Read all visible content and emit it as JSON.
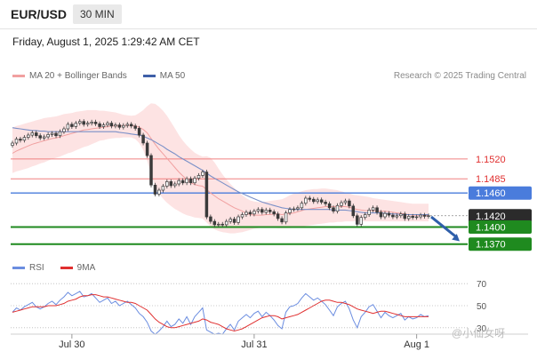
{
  "header": {
    "pair": "EUR/USD",
    "timeframe": "30 MIN"
  },
  "date_line": "Friday, August 1, 2025 1:29:42 AM CET",
  "credit": "Research © 2025 Trading Central",
  "legend": {
    "bollinger": "MA 20 + Bollinger Bands",
    "ma50": "MA 50"
  },
  "rsi_legend": {
    "rsi": "RSI",
    "ma9": "9MA"
  },
  "watermark": "@小仙女呀",
  "colors": {
    "resistance": "#f08080",
    "pivot": "#4a7cdc",
    "support": "#1f8a1f",
    "candle": "#3a3a3a",
    "bollinger_fill": "#fde3e3",
    "ma20": "#f1a0a0",
    "ma50": "#7a90c8",
    "rsi": "#6b8de0",
    "rsi_ma": "#e03030",
    "current_price_label": "#2b2b2b"
  },
  "chart_data": [
    {
      "type": "candlestick",
      "title": "EUR/USD 30 MIN",
      "xlabel": "",
      "ylabel": "",
      "x_ticks": [
        "Jul 30",
        "Jul 31",
        "Aug 1"
      ],
      "ylim": [
        1.1357,
        1.162
      ],
      "current_price": 1.142,
      "levels": [
        {
          "value": 1.152,
          "label": "1.1520",
          "kind": "resistance"
        },
        {
          "value": 1.1485,
          "label": "1.1485",
          "kind": "resistance"
        },
        {
          "value": 1.146,
          "label": "1.1460",
          "kind": "pivot"
        },
        {
          "value": 1.142,
          "label": "1.1420",
          "kind": "current"
        },
        {
          "value": 1.14,
          "label": "1.1400",
          "kind": "support"
        },
        {
          "value": 1.137,
          "label": "1.1370",
          "kind": "support"
        }
      ],
      "forecast": {
        "from": 1.1418,
        "to": 1.1375,
        "direction": "down"
      },
      "close": [
        1.1548,
        1.1555,
        1.1553,
        1.1558,
        1.1562,
        1.1566,
        1.1561,
        1.1557,
        1.1559,
        1.1563,
        1.1565,
        1.1561,
        1.1568,
        1.1573,
        1.1581,
        1.1577,
        1.1583,
        1.1586,
        1.1581,
        1.1583,
        1.1585,
        1.1582,
        1.1577,
        1.158,
        1.1583,
        1.1578,
        1.158,
        1.1576,
        1.1579,
        1.1581,
        1.1578,
        1.1574,
        1.1562,
        1.1548,
        1.1526,
        1.1474,
        1.1458,
        1.1465,
        1.1472,
        1.148,
        1.1473,
        1.1476,
        1.1482,
        1.1478,
        1.1485,
        1.1478,
        1.1486,
        1.1491,
        1.1497,
        1.1418,
        1.141,
        1.1404,
        1.1405,
        1.1404,
        1.141,
        1.1414,
        1.1408,
        1.1418,
        1.1422,
        1.1426,
        1.1423,
        1.1428,
        1.1431,
        1.1426,
        1.143,
        1.1427,
        1.1423,
        1.1415,
        1.1409,
        1.1425,
        1.1431,
        1.1432,
        1.1434,
        1.1442,
        1.1451,
        1.1449,
        1.1445,
        1.1448,
        1.1444,
        1.1441,
        1.1434,
        1.1428,
        1.1438,
        1.1443,
        1.1446,
        1.1437,
        1.142,
        1.1405,
        1.1417,
        1.1422,
        1.143,
        1.1434,
        1.1426,
        1.1418,
        1.1424,
        1.1421,
        1.1418,
        1.142,
        1.1423,
        1.1415,
        1.1419,
        1.1417,
        1.1418,
        1.1421,
        1.1419,
        1.142
      ],
      "bollinger_mid": [
        1.153,
        1.1534,
        1.1537,
        1.154,
        1.1543,
        1.1546,
        1.1548,
        1.155,
        1.1552,
        1.1554,
        1.1556,
        1.1557,
        1.1559,
        1.1561,
        1.1563,
        1.1565,
        1.1567,
        1.1569,
        1.1571,
        1.1572,
        1.1573,
        1.1574,
        1.1575,
        1.1576,
        1.1577,
        1.1578,
        1.1578,
        1.1578,
        1.1579,
        1.1579,
        1.1579,
        1.1578,
        1.1576,
        1.1572,
        1.1566,
        1.1556,
        1.1546,
        1.1537,
        1.1529,
        1.1521,
        1.1513,
        1.1505,
        1.1497,
        1.149,
        1.1484,
        1.1478,
        1.1475,
        1.1473,
        1.1472,
        1.1466,
        1.146,
        1.1455,
        1.145,
        1.1446,
        1.1442,
        1.1438,
        1.1434,
        1.1431,
        1.1428,
        1.1424,
        1.1422,
        1.1421,
        1.1421,
        1.1421,
        1.1422,
        1.1422,
        1.1423,
        1.1423,
        1.1422,
        1.1423,
        1.1424,
        1.1425,
        1.1427,
        1.1429,
        1.1431,
        1.1432,
        1.1433,
        1.1434,
        1.1435,
        1.1436,
        1.1436,
        1.1436,
        1.1436,
        1.1436,
        1.1436,
        1.1435,
        1.1433,
        1.1431,
        1.143,
        1.1429,
        1.1429,
        1.1429,
        1.1428,
        1.1428,
        1.1428,
        1.1427,
        1.1426,
        1.1425,
        1.1424,
        1.1423,
        1.1422,
        1.1421,
        1.1421,
        1.1421,
        1.1421,
        1.1421
      ],
      "bollinger_upper": [
        1.1575,
        1.1578,
        1.158,
        1.1582,
        1.1584,
        1.1586,
        1.1588,
        1.159,
        1.1592,
        1.1593,
        1.1594,
        1.1595,
        1.1597,
        1.1599,
        1.16,
        1.1601,
        1.1603,
        1.1604,
        1.1605,
        1.1606,
        1.1606,
        1.1606,
        1.1605,
        1.1605,
        1.1604,
        1.1603,
        1.1602,
        1.16,
        1.1598,
        1.1597,
        1.1596,
        1.1597,
        1.1601,
        1.1606,
        1.1613,
        1.1618,
        1.1617,
        1.1612,
        1.1605,
        1.1596,
        1.1585,
        1.1574,
        1.1562,
        1.1552,
        1.1544,
        1.1537,
        1.1531,
        1.1527,
        1.1524,
        1.1525,
        1.1522,
        1.1514,
        1.1503,
        1.1493,
        1.1484,
        1.1476,
        1.1469,
        1.1462,
        1.1456,
        1.1451,
        1.1447,
        1.1445,
        1.1444,
        1.1444,
        1.1445,
        1.1446,
        1.1447,
        1.1448,
        1.1449,
        1.1452,
        1.1456,
        1.1459,
        1.1461,
        1.1463,
        1.1465,
        1.1466,
        1.1467,
        1.1467,
        1.1468,
        1.1468,
        1.1467,
        1.1466,
        1.1465,
        1.1463,
        1.1461,
        1.1459,
        1.1457,
        1.1456,
        1.1455,
        1.1454,
        1.1453,
        1.1451,
        1.145,
        1.1449,
        1.1448,
        1.1447,
        1.1446,
        1.1445,
        1.1444,
        1.1443,
        1.1442,
        1.1441,
        1.1441,
        1.1441,
        1.1441,
        1.1441
      ],
      "bollinger_lower": [
        1.1495,
        1.1498,
        1.15,
        1.1502,
        1.1504,
        1.1507,
        1.1509,
        1.1512,
        1.1514,
        1.1517,
        1.152,
        1.1522,
        1.1524,
        1.1527,
        1.153,
        1.1532,
        1.1535,
        1.1538,
        1.1541,
        1.1543,
        1.1546,
        1.1549,
        1.1552,
        1.1553,
        1.1555,
        1.1556,
        1.1557,
        1.1557,
        1.1558,
        1.1558,
        1.1558,
        1.1555,
        1.1548,
        1.1536,
        1.1517,
        1.1492,
        1.1472,
        1.1459,
        1.145,
        1.1443,
        1.1437,
        1.1432,
        1.1428,
        1.1424,
        1.1421,
        1.1419,
        1.1417,
        1.1416,
        1.1415,
        1.1408,
        1.1401,
        1.1396,
        1.1393,
        1.1391,
        1.139,
        1.1389,
        1.1389,
        1.139,
        1.1391,
        1.1393,
        1.1395,
        1.1397,
        1.1398,
        1.1399,
        1.1399,
        1.1399,
        1.1399,
        1.1398,
        1.1398,
        1.1398,
        1.1398,
        1.1399,
        1.14,
        1.1401,
        1.1402,
        1.1403,
        1.1404,
        1.1405,
        1.1406,
        1.1407,
        1.1408,
        1.1408,
        1.1409,
        1.1409,
        1.141,
        1.141,
        1.141,
        1.141,
        1.141,
        1.141,
        1.141,
        1.141,
        1.141,
        1.141,
        1.141,
        1.141,
        1.141,
        1.141,
        1.141,
        1.141,
        1.141,
        1.141,
        1.141,
        1.141,
        1.141,
        1.141
      ],
      "ma50": [
        1.1575,
        1.1574,
        1.1573,
        1.1572,
        1.1571,
        1.157,
        1.157,
        1.1569,
        1.1569,
        1.1568,
        1.1568,
        1.1568,
        1.1568,
        1.1568,
        1.1568,
        1.1568,
        1.1568,
        1.1568,
        1.1568,
        1.1568,
        1.1568,
        1.1568,
        1.1568,
        1.1568,
        1.1568,
        1.1568,
        1.1568,
        1.1567,
        1.1566,
        1.1565,
        1.1564,
        1.1563,
        1.1562,
        1.156,
        1.1557,
        1.1554,
        1.155,
        1.1546,
        1.1542,
        1.1537,
        1.1533,
        1.1529,
        1.1524,
        1.152,
        1.1516,
        1.1512,
        1.1508,
        1.1504,
        1.15,
        1.1495,
        1.149,
        1.1486,
        1.1482,
        1.1478,
        1.1474,
        1.147,
        1.1466,
        1.1462,
        1.1459,
        1.1456,
        1.1453,
        1.145,
        1.1447,
        1.1444,
        1.1442,
        1.144,
        1.1438,
        1.1436,
        1.1434,
        1.1433,
        1.1432,
        1.1431,
        1.1431,
        1.1431,
        1.1431,
        1.1431,
        1.1431,
        1.1431,
        1.1431,
        1.1431,
        1.1431,
        1.143,
        1.143,
        1.143,
        1.143,
        1.1429,
        1.1428,
        1.1427,
        1.1426,
        1.1425,
        1.1425,
        1.1425,
        1.1425,
        1.1425,
        1.1424,
        1.1424,
        1.1423,
        1.1423,
        1.1422,
        1.1422,
        1.1422,
        1.1422,
        1.1422,
        1.1422,
        1.1422,
        1.1422
      ]
    },
    {
      "type": "line",
      "title": "RSI",
      "ylim": [
        25,
        75
      ],
      "y_ticks": [
        70,
        50,
        30
      ],
      "series": [
        {
          "name": "RSI",
          "values": [
            44,
            48,
            46,
            49,
            51,
            53,
            49,
            47,
            49,
            52,
            54,
            51,
            55,
            58,
            62,
            59,
            61,
            63,
            58,
            59,
            61,
            57,
            53,
            55,
            57,
            52,
            54,
            50,
            52,
            54,
            51,
            48,
            43,
            40,
            35,
            27,
            24,
            27,
            31,
            36,
            31,
            33,
            38,
            34,
            40,
            33,
            40,
            44,
            48,
            28,
            26,
            24,
            25,
            24,
            29,
            33,
            28,
            36,
            39,
            42,
            39,
            43,
            45,
            40,
            44,
            41,
            37,
            32,
            29,
            44,
            49,
            50,
            52,
            57,
            61,
            58,
            55,
            57,
            54,
            51,
            46,
            41,
            49,
            52,
            54,
            47,
            37,
            30,
            40,
            44,
            49,
            51,
            45,
            39,
            44,
            41,
            39,
            41,
            43,
            37,
            40,
            38,
            39,
            42,
            40,
            41
          ]
        },
        {
          "name": "9MA",
          "values": [
            44,
            45,
            46,
            47,
            48,
            49,
            49,
            49,
            49,
            50,
            50,
            50,
            51,
            52,
            54,
            55,
            56,
            58,
            59,
            59,
            60,
            60,
            59,
            58,
            58,
            57,
            56,
            55,
            54,
            53,
            53,
            52,
            50,
            48,
            46,
            42,
            38,
            35,
            33,
            31,
            30,
            30,
            31,
            32,
            33,
            34,
            35,
            36,
            38,
            37,
            35,
            34,
            33,
            31,
            29,
            28,
            27,
            28,
            29,
            31,
            33,
            35,
            37,
            39,
            40,
            41,
            41,
            40,
            38,
            39,
            40,
            41,
            42,
            44,
            46,
            48,
            50,
            52,
            54,
            55,
            55,
            54,
            53,
            53,
            52,
            51,
            49,
            47,
            46,
            45,
            44,
            43,
            44,
            45,
            45,
            44,
            43,
            42,
            41,
            40,
            40,
            40,
            40,
            40,
            40,
            40
          ]
        }
      ]
    }
  ]
}
